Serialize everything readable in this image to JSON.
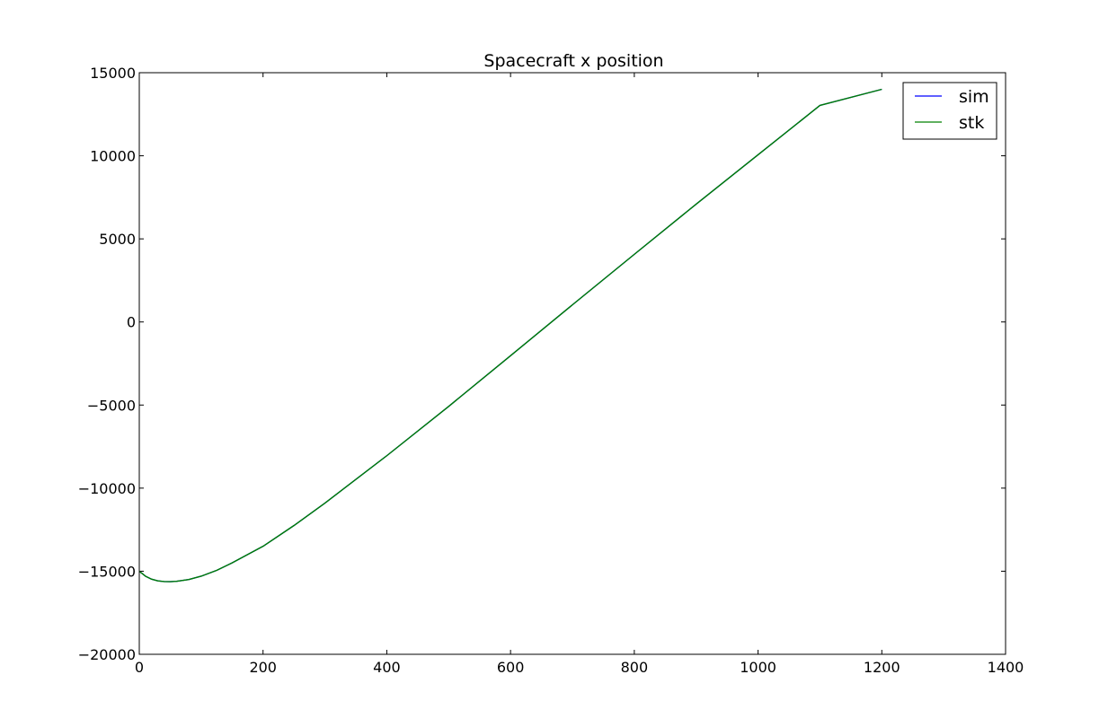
{
  "chart_data": {
    "type": "line",
    "title": "Spacecraft x position",
    "xlabel": "",
    "ylabel": "",
    "xlim": [
      0,
      1400
    ],
    "ylim": [
      -20000,
      15000
    ],
    "x_ticks": [
      0,
      200,
      400,
      600,
      800,
      1000,
      1200,
      1400
    ],
    "y_ticks": [
      -20000,
      -15000,
      -10000,
      -5000,
      0,
      5000,
      10000,
      15000
    ],
    "x_tick_labels": [
      "0",
      "200",
      "400",
      "600",
      "800",
      "1000",
      "1200",
      "1400"
    ],
    "y_tick_labels": [
      "−20000",
      "−15000",
      "−10000",
      "−5000",
      "0",
      "5000",
      "10000",
      "15000"
    ],
    "grid": false,
    "legend_position": "top-right",
    "series": [
      {
        "name": "sim",
        "color": "#0000ff",
        "x": [
          0,
          10,
          20,
          30,
          40,
          50,
          60,
          80,
          100,
          125,
          150,
          200,
          250,
          300,
          400,
          500,
          600,
          700,
          800,
          900,
          1000,
          1100,
          1200
        ],
        "y": [
          -15000,
          -15300,
          -15480,
          -15580,
          -15620,
          -15630,
          -15610,
          -15500,
          -15300,
          -14950,
          -14500,
          -13500,
          -12250,
          -10900,
          -8050,
          -5080,
          -2030,
          1030,
          4070,
          7090,
          10060,
          13030,
          14000
        ]
      },
      {
        "name": "stk",
        "color": "#008000",
        "x": [
          0,
          10,
          20,
          30,
          40,
          50,
          60,
          80,
          100,
          125,
          150,
          200,
          250,
          300,
          400,
          500,
          600,
          700,
          800,
          900,
          1000,
          1100,
          1200
        ],
        "y": [
          -15000,
          -15300,
          -15480,
          -15580,
          -15620,
          -15630,
          -15610,
          -15500,
          -15300,
          -14950,
          -14500,
          -13500,
          -12250,
          -10900,
          -8050,
          -5080,
          -2030,
          1030,
          4070,
          7090,
          10060,
          13030,
          14000
        ]
      }
    ]
  }
}
